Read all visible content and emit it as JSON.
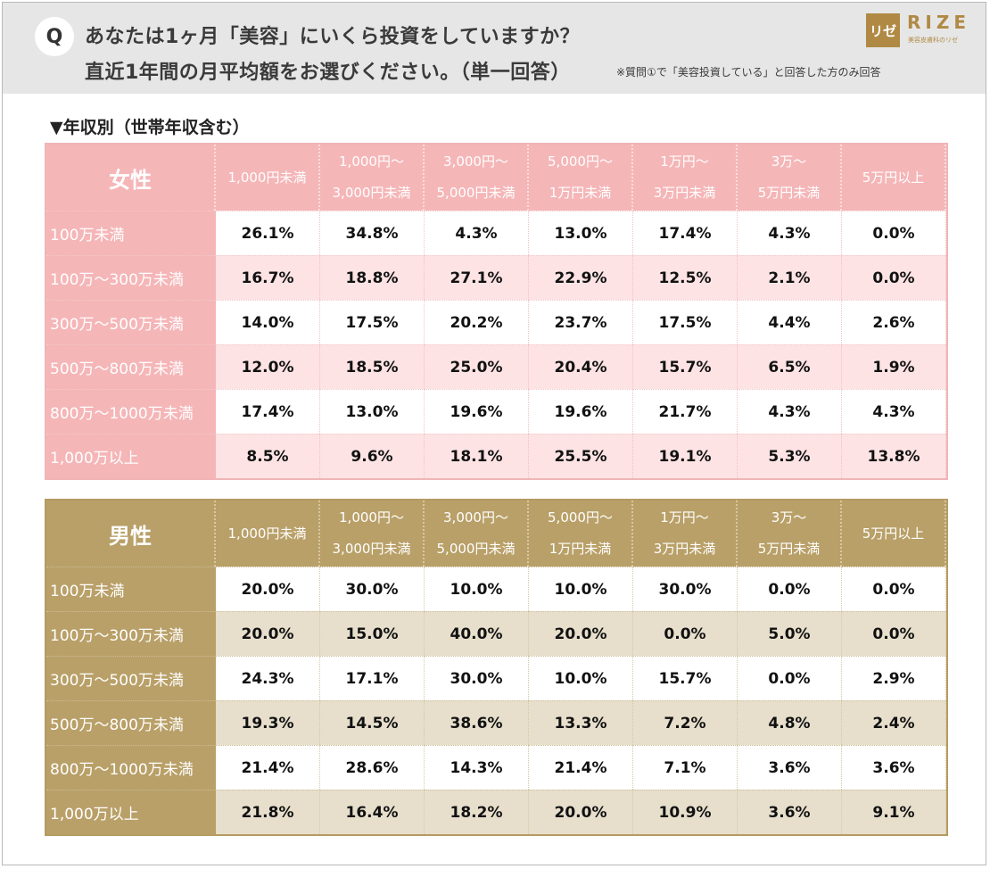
{
  "question": {
    "badge": "Q",
    "line1": "あなたは1ヶ月「美容」にいくら投資をしていますか？",
    "line2": "直近1年間の月平均額をお選びください。（単一回答）",
    "note": "※質問①で「美容投資している」と回答した方のみ回答"
  },
  "logo": {
    "mark": "リゼ",
    "word": "RIZE",
    "sub": "美容皮膚科のリゼ"
  },
  "section_title": "▼年収別（世帯年収含む）",
  "colors": {
    "female_header": "#f5b6b8",
    "female_stripe": "#fde3e4",
    "male_header": "#b9a068",
    "male_stripe": "#e7dfcc"
  },
  "chart_data": [
    {
      "type": "table",
      "title": "女性",
      "columns": [
        [
          "1,000円未満"
        ],
        [
          "1,000円～",
          "3,000円未満"
        ],
        [
          "3,000円～",
          "5,000円未満"
        ],
        [
          "5,000円～",
          "1万円未満"
        ],
        [
          "1万円～",
          "3万円未満"
        ],
        [
          "3万～",
          "5万円未満"
        ],
        [
          "5万円以上"
        ]
      ],
      "rows": [
        {
          "label": "100万未満",
          "values": [
            "26.1%",
            "34.8%",
            "4.3%",
            "13.0%",
            "17.4%",
            "4.3%",
            "0.0%"
          ]
        },
        {
          "label": "100万～300万未満",
          "values": [
            "16.7%",
            "18.8%",
            "27.1%",
            "22.9%",
            "12.5%",
            "2.1%",
            "0.0%"
          ]
        },
        {
          "label": "300万～500万未満",
          "values": [
            "14.0%",
            "17.5%",
            "20.2%",
            "23.7%",
            "17.5%",
            "4.4%",
            "2.6%"
          ]
        },
        {
          "label": "500万～800万未満",
          "values": [
            "12.0%",
            "18.5%",
            "25.0%",
            "20.4%",
            "15.7%",
            "6.5%",
            "1.9%"
          ]
        },
        {
          "label": "800万～1000万未満",
          "values": [
            "17.4%",
            "13.0%",
            "19.6%",
            "19.6%",
            "21.7%",
            "4.3%",
            "4.3%"
          ]
        },
        {
          "label": "1,000万以上",
          "values": [
            "8.5%",
            "9.6%",
            "18.1%",
            "25.5%",
            "19.1%",
            "5.3%",
            "13.8%"
          ]
        }
      ]
    },
    {
      "type": "table",
      "title": "男性",
      "columns": [
        [
          "1,000円未満"
        ],
        [
          "1,000円～",
          "3,000円未満"
        ],
        [
          "3,000円～",
          "5,000円未満"
        ],
        [
          "5,000円～",
          "1万円未満"
        ],
        [
          "1万円～",
          "3万円未満"
        ],
        [
          "3万～",
          "5万円未満"
        ],
        [
          "5万円以上"
        ]
      ],
      "rows": [
        {
          "label": "100万未満",
          "values": [
            "20.0%",
            "30.0%",
            "10.0%",
            "10.0%",
            "30.0%",
            "0.0%",
            "0.0%"
          ]
        },
        {
          "label": "100万～300万未満",
          "values": [
            "20.0%",
            "15.0%",
            "40.0%",
            "20.0%",
            "0.0%",
            "5.0%",
            "0.0%"
          ]
        },
        {
          "label": "300万～500万未満",
          "values": [
            "24.3%",
            "17.1%",
            "30.0%",
            "10.0%",
            "15.7%",
            "0.0%",
            "2.9%"
          ]
        },
        {
          "label": "500万～800万未満",
          "values": [
            "19.3%",
            "14.5%",
            "38.6%",
            "13.3%",
            "7.2%",
            "4.8%",
            "2.4%"
          ]
        },
        {
          "label": "800万～1000万未満",
          "values": [
            "21.4%",
            "28.6%",
            "14.3%",
            "21.4%",
            "7.1%",
            "3.6%",
            "3.6%"
          ]
        },
        {
          "label": "1,000万以上",
          "values": [
            "21.8%",
            "16.4%",
            "18.2%",
            "20.0%",
            "10.9%",
            "3.6%",
            "9.1%"
          ]
        }
      ]
    }
  ]
}
